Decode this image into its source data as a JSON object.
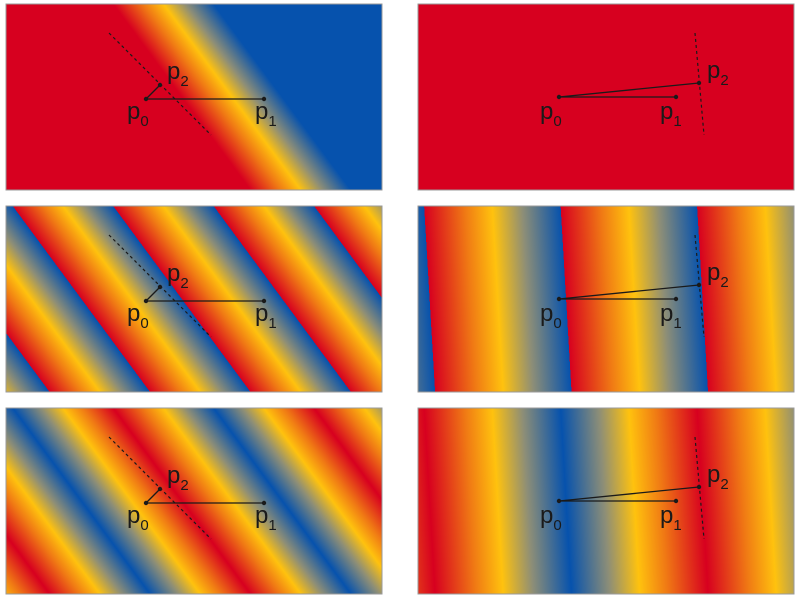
{
  "colors": {
    "red": "#d7001f",
    "orange": "#f07a14",
    "yellow": "#ffc20e",
    "gray": "#8d8e77",
    "blue": "#0652ad",
    "panel_border": "#9a9a9a",
    "line": "#1a1a1a"
  },
  "labels": {
    "p0_main": "p",
    "p0_sub": "0",
    "p1_main": "p",
    "p1_sub": "1",
    "p2_main": "p",
    "p2_sub": "2"
  },
  "panels": [
    {
      "name": "panel-top-left",
      "gradient": "linear pad",
      "direction": "diagonal"
    },
    {
      "name": "panel-top-right",
      "gradient": "linear pad",
      "direction": "horizontal"
    },
    {
      "name": "panel-middle-left",
      "gradient": "linear repeat",
      "direction": "diagonal"
    },
    {
      "name": "panel-middle-right",
      "gradient": "linear repeat",
      "direction": "horizontal"
    },
    {
      "name": "panel-bottom-left",
      "gradient": "linear reflect",
      "direction": "diagonal"
    },
    {
      "name": "panel-bottom-right",
      "gradient": "linear reflect",
      "direction": "horizontal"
    }
  ]
}
